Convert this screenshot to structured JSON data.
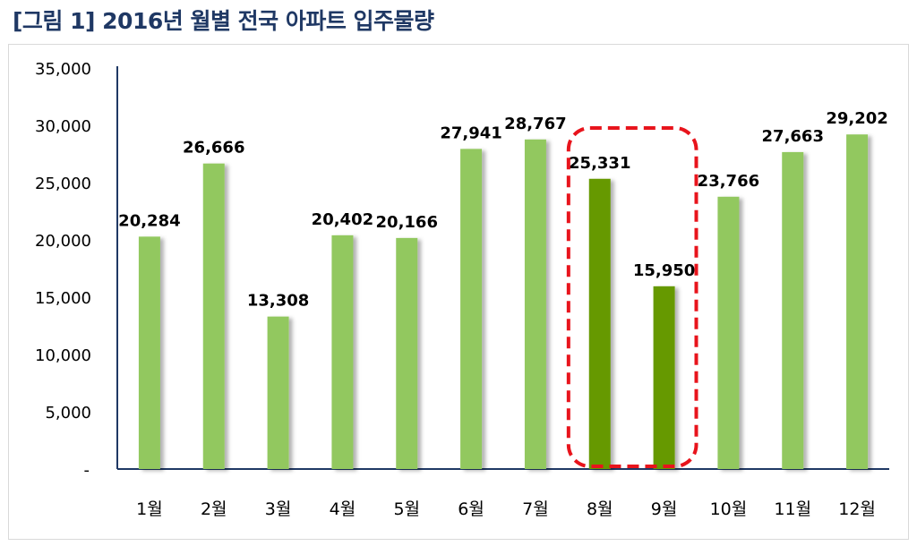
{
  "title": "[그림 1] 2016년 월별 전국 아파트 입주물량",
  "chart_data": {
    "type": "bar",
    "categories": [
      "1월",
      "2월",
      "3월",
      "4월",
      "5월",
      "6월",
      "7월",
      "8월",
      "9월",
      "10월",
      "11월",
      "12월"
    ],
    "values": [
      20284,
      26666,
      13308,
      20402,
      20166,
      27941,
      28767,
      25331,
      15950,
      23766,
      27663,
      29202
    ],
    "data_labels": [
      "20,284",
      "26,666",
      "13,308",
      "20,402",
      "20,166",
      "27,941",
      "28,767",
      "25,331",
      "15,950",
      "23,766",
      "27,663",
      "29,202"
    ],
    "ylim": [
      0,
      35000
    ],
    "yticks": [
      "-",
      "5,000",
      "10,000",
      "15,000",
      "20,000",
      "25,000",
      "30,000",
      "35,000"
    ],
    "grid": false,
    "legend": "none",
    "colors": {
      "bar": "#92c85e",
      "highlight_bar": "#669900",
      "highlight_box": "#e8141c",
      "axis": "#1f3864"
    },
    "highlighted_categories": [
      "8월",
      "9월"
    ]
  }
}
